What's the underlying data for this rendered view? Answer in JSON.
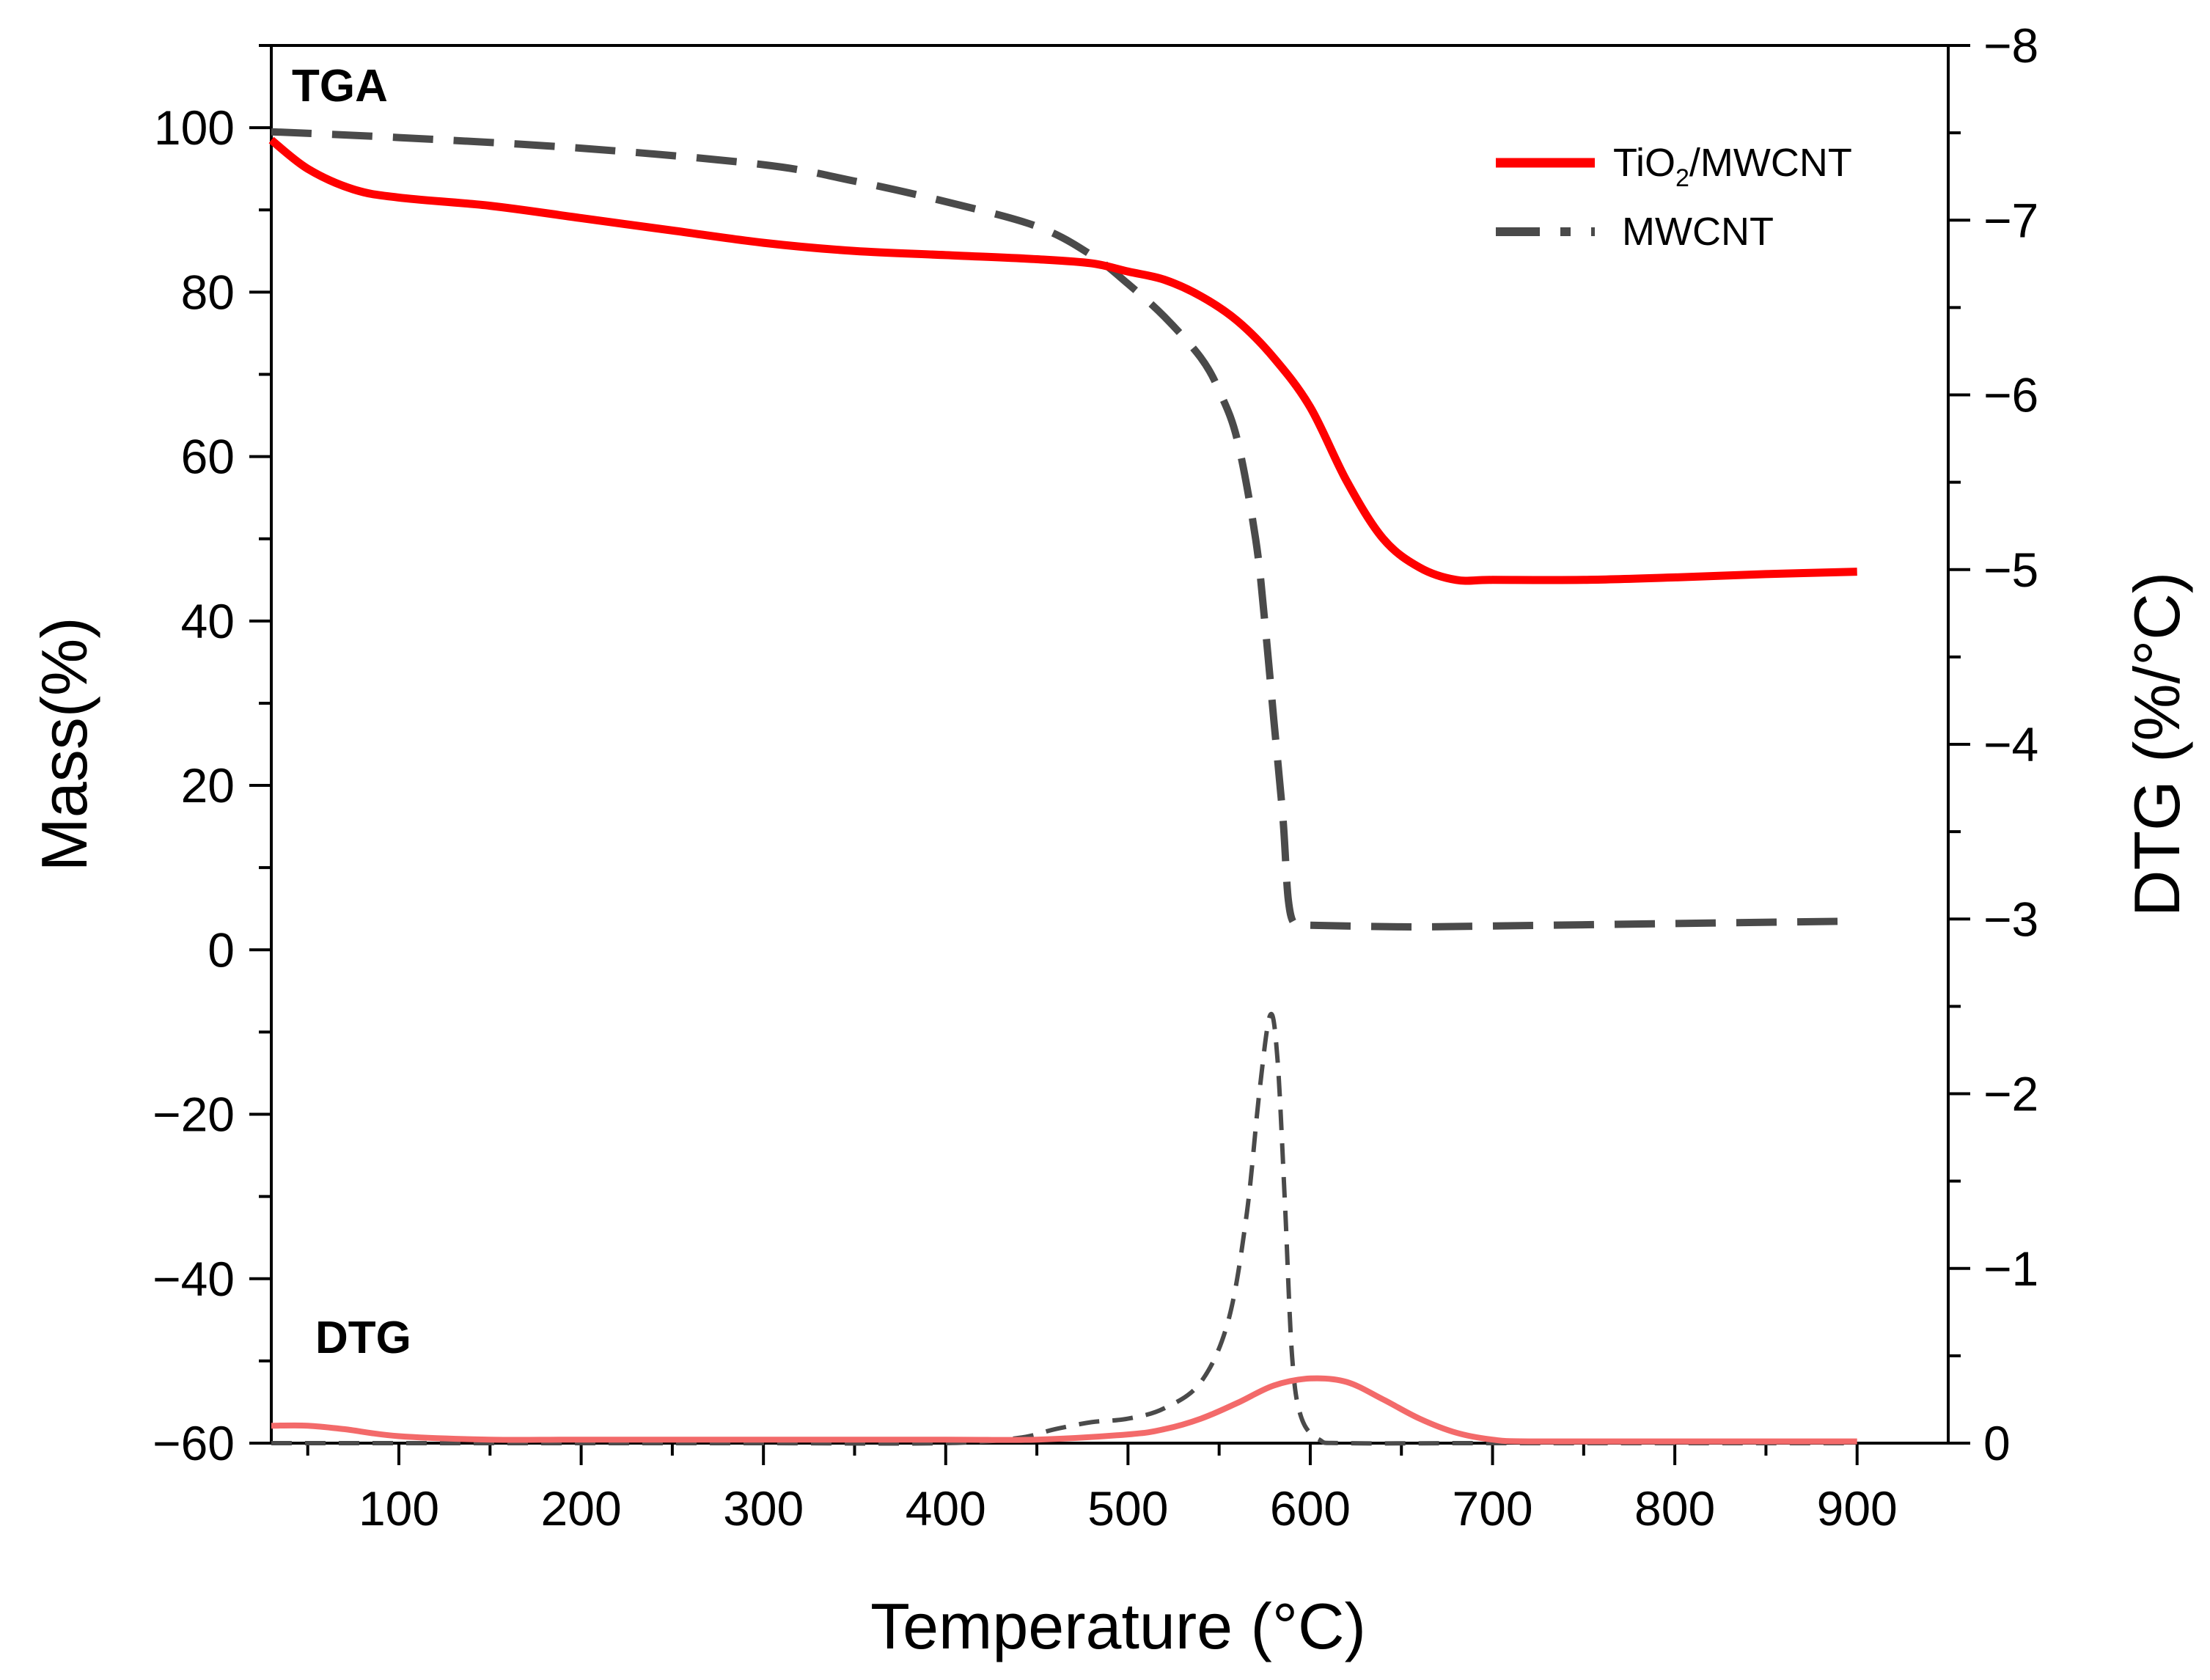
{
  "chart_data": {
    "type": "line",
    "panel_labels": {
      "tga": "TGA",
      "dtg": "DTG"
    },
    "xlabel": "Temperature (°C)",
    "ylabel_left": "Mass(%)",
    "ylabel_right": "DTG (%/°C)",
    "xlim": [
      30,
      950
    ],
    "ylim_left": [
      -60,
      110
    ],
    "ylim_right": [
      0,
      -8
    ],
    "x_ticks": [
      100,
      200,
      300,
      400,
      500,
      600,
      700,
      800,
      900
    ],
    "y_left_ticks": [
      -60,
      -40,
      -20,
      0,
      20,
      40,
      60,
      80,
      100
    ],
    "y_right_ticks": [
      0,
      -1,
      -2,
      -3,
      -4,
      -5,
      -6,
      -7,
      -8
    ],
    "x_tick_labels": [
      "100",
      "200",
      "300",
      "400",
      "500",
      "600",
      "700",
      "800",
      "900"
    ],
    "y_left_tick_labels": [
      "−60",
      "−40",
      "−20",
      "0",
      "20",
      "40",
      "60",
      "80",
      "100"
    ],
    "y_right_tick_labels": [
      "0",
      "−1",
      "−2",
      "−3",
      "−4",
      "−5",
      "−6",
      "−7",
      "−8"
    ],
    "legend": {
      "position": "top-right",
      "entries": [
        {
          "base": "TiO",
          "sub": "2",
          "rest": "/MWCNT"
        },
        {
          "base": "MWCNT",
          "sub": "",
          "rest": ""
        }
      ]
    },
    "colors": {
      "tio2_tga": "#ff0000",
      "tio2_dtg": "#f36a6a",
      "mwcnt": "#4a4a4a"
    },
    "series": [
      {
        "name": "TiO2/MWCNT",
        "kind": "TGA",
        "axis": "left",
        "style": "solid",
        "x": [
          30,
          50,
          75,
          100,
          150,
          200,
          250,
          300,
          350,
          400,
          450,
          480,
          500,
          520,
          540,
          560,
          580,
          600,
          620,
          640,
          660,
          680,
          700,
          750,
          800,
          850,
          900
        ],
        "y": [
          98.5,
          95,
          92.5,
          91.5,
          90.5,
          89,
          87.5,
          86,
          85,
          84.5,
          84,
          83.5,
          82.5,
          81.5,
          79.5,
          76.5,
          72,
          66,
          57,
          50,
          46.5,
          45,
          45,
          45,
          45.3,
          45.7,
          46
        ]
      },
      {
        "name": "MWCNT",
        "kind": "TGA",
        "axis": "left",
        "style": "dashed",
        "x": [
          30,
          100,
          200,
          300,
          350,
          400,
          450,
          480,
          500,
          520,
          540,
          550,
          560,
          570,
          575,
          580,
          585,
          588,
          592,
          600,
          650,
          700,
          800,
          900
        ],
        "y": [
          99.5,
          98.8,
          97.5,
          95.5,
          93.5,
          91,
          88,
          84.5,
          81,
          77,
          72,
          68,
          62,
          50,
          40,
          28,
          16,
          6,
          3,
          3,
          2.8,
          2.9,
          3.2,
          3.5
        ]
      },
      {
        "name": "TiO2/MWCNT",
        "kind": "DTG",
        "axis": "right",
        "style": "solid",
        "x": [
          30,
          50,
          70,
          100,
          150,
          200,
          300,
          400,
          450,
          500,
          520,
          540,
          560,
          580,
          600,
          620,
          640,
          660,
          680,
          700,
          720,
          800,
          900
        ],
        "y": [
          -0.1,
          -0.1,
          -0.08,
          -0.04,
          -0.02,
          -0.02,
          -0.02,
          -0.02,
          -0.02,
          -0.05,
          -0.08,
          -0.14,
          -0.23,
          -0.33,
          -0.37,
          -0.35,
          -0.25,
          -0.14,
          -0.06,
          -0.02,
          -0.01,
          -0.01,
          -0.01
        ]
      },
      {
        "name": "MWCNT",
        "kind": "DTG",
        "axis": "right",
        "style": "dashed",
        "x": [
          30,
          100,
          200,
          300,
          400,
          440,
          460,
          480,
          500,
          520,
          540,
          555,
          565,
          572,
          578,
          582,
          586,
          590,
          595,
          605,
          620,
          700,
          900
        ],
        "y": [
          0,
          0,
          0,
          0,
          0,
          -0.03,
          -0.08,
          -0.12,
          -0.14,
          -0.2,
          -0.35,
          -0.7,
          -1.3,
          -2.0,
          -2.45,
          -2.2,
          -1.4,
          -0.5,
          -0.15,
          -0.02,
          0,
          0,
          0
        ]
      }
    ]
  }
}
